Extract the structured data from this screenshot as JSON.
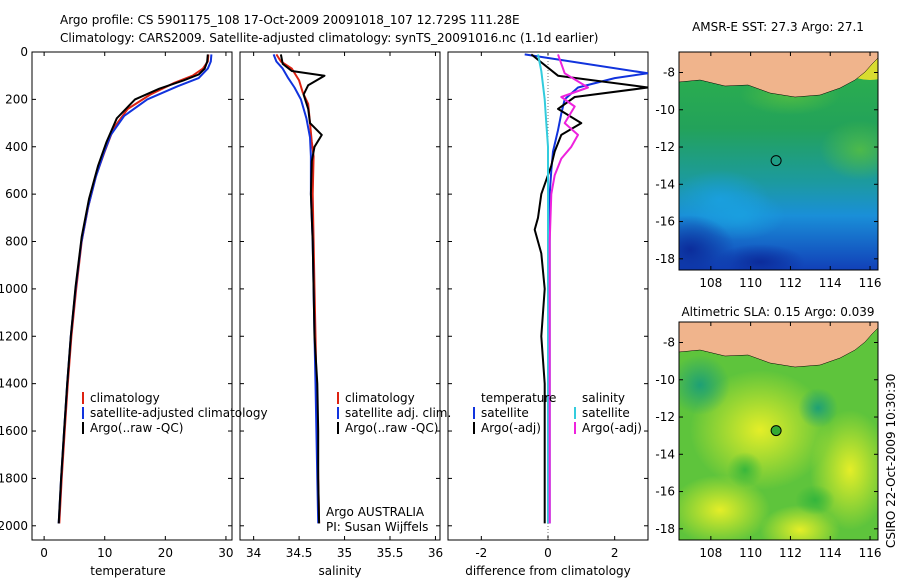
{
  "header": {
    "line1": "Argo profile: CS 5901175_108 17-Oct-2009 20091018_107 12.729S 111.28E",
    "line2": "Climatology: CARS2009. Satellite-adjusted climatology: synTS_20091016.nc (1.1d earlier)"
  },
  "credit": "CSIRO 22-Oct-2009 10:30:30",
  "colors": {
    "climatology": "#dd2211",
    "satellite": "#1133dd",
    "argo": "#000000",
    "salinity_satellite": "#33ccdd",
    "salinity_argo": "#ee22dd",
    "land": "#f0b48c",
    "marker_sst": "#000000",
    "marker_sla": "#33aa33"
  },
  "chart_data": [
    {
      "id": "temperature",
      "type": "line",
      "xlabel": "temperature",
      "ylabel": "",
      "xlim": [
        -2,
        31
      ],
      "ylim": [
        2060,
        0
      ],
      "xticks": [
        0,
        10,
        20,
        30
      ],
      "yticks": [
        0,
        200,
        400,
        600,
        800,
        1000,
        1200,
        1400,
        1600,
        1800,
        2000
      ],
      "legend": {
        "position": "lower-right",
        "entries": [
          "climatology",
          "satellite-adjusted climatology",
          "Argo(..raw -QC)"
        ]
      },
      "series": [
        {
          "name": "climatology",
          "color": "#dd2211",
          "points": [
            [
              27.1,
              10
            ],
            [
              27.0,
              40
            ],
            [
              26.2,
              70
            ],
            [
              24.5,
              100
            ],
            [
              21.5,
              130
            ],
            [
              17.5,
              180
            ],
            [
              13.8,
              240
            ],
            [
              11.5,
              320
            ],
            [
              10.0,
              420
            ],
            [
              8.6,
              520
            ],
            [
              7.3,
              650
            ],
            [
              6.2,
              800
            ],
            [
              5.3,
              1000
            ],
            [
              4.5,
              1200
            ],
            [
              3.9,
              1400
            ],
            [
              3.4,
              1600
            ],
            [
              2.9,
              1800
            ],
            [
              2.5,
              1990
            ]
          ]
        },
        {
          "name": "satellite-adjusted climatology",
          "color": "#1133dd",
          "points": [
            [
              27.6,
              10
            ],
            [
              27.5,
              40
            ],
            [
              27.0,
              70
            ],
            [
              25.5,
              110
            ],
            [
              22.0,
              145
            ],
            [
              17.0,
              200
            ],
            [
              13.2,
              270
            ],
            [
              11.0,
              350
            ],
            [
              9.8,
              430
            ],
            [
              8.5,
              530
            ],
            [
              7.2,
              660
            ],
            [
              6.1,
              810
            ],
            [
              5.2,
              1000
            ],
            [
              4.4,
              1200
            ],
            [
              3.8,
              1400
            ],
            [
              3.3,
              1600
            ],
            [
              2.8,
              1800
            ],
            [
              2.4,
              1990
            ]
          ]
        },
        {
          "name": "Argo(..raw -QC)",
          "color": "#000000",
          "points": [
            [
              27.0,
              10
            ],
            [
              26.9,
              40
            ],
            [
              26.5,
              70
            ],
            [
              25.5,
              95
            ],
            [
              23.0,
              120
            ],
            [
              19.0,
              155
            ],
            [
              15.0,
              200
            ],
            [
              12.0,
              280
            ],
            [
              10.3,
              380
            ],
            [
              8.9,
              480
            ],
            [
              7.4,
              620
            ],
            [
              6.2,
              780
            ],
            [
              5.2,
              990
            ],
            [
              4.4,
              1200
            ],
            [
              3.8,
              1400
            ],
            [
              3.3,
              1600
            ],
            [
              2.8,
              1800
            ],
            [
              2.4,
              1990
            ]
          ]
        }
      ]
    },
    {
      "id": "salinity",
      "type": "line",
      "xlabel": "salinity",
      "ylabel": "",
      "xlim": [
        33.85,
        36.05
      ],
      "ylim": [
        2060,
        0
      ],
      "xticks": [
        34,
        34.5,
        35,
        35.5,
        36
      ],
      "yticks": [
        0,
        200,
        400,
        600,
        800,
        1000,
        1200,
        1400,
        1600,
        1800,
        2000
      ],
      "legend": {
        "position": "lower-right",
        "entries": [
          "climatology",
          "satellite adj. clim.",
          "Argo(..raw -QC)"
        ]
      },
      "annotations": [
        "Argo AUSTRALIA",
        "PI: Susan Wijffels"
      ],
      "series": [
        {
          "name": "climatology",
          "color": "#dd2211",
          "points": [
            [
              34.25,
              10
            ],
            [
              34.3,
              40
            ],
            [
              34.42,
              70
            ],
            [
              34.5,
              120
            ],
            [
              34.54,
              170
            ],
            [
              34.6,
              220
            ],
            [
              34.62,
              300
            ],
            [
              34.64,
              380
            ],
            [
              34.66,
              440
            ],
            [
              34.65,
              600
            ],
            [
              34.66,
              800
            ],
            [
              34.67,
              1000
            ],
            [
              34.68,
              1200
            ],
            [
              34.69,
              1400
            ],
            [
              34.7,
              1600
            ],
            [
              34.71,
              1800
            ],
            [
              34.72,
              1990
            ]
          ]
        },
        {
          "name": "satellite adj. clim.",
          "color": "#1133dd",
          "points": [
            [
              34.22,
              10
            ],
            [
              34.25,
              40
            ],
            [
              34.32,
              70
            ],
            [
              34.38,
              110
            ],
            [
              34.45,
              150
            ],
            [
              34.52,
              200
            ],
            [
              34.58,
              280
            ],
            [
              34.62,
              360
            ],
            [
              34.63,
              440
            ],
            [
              34.63,
              600
            ],
            [
              34.65,
              800
            ],
            [
              34.66,
              1000
            ],
            [
              34.67,
              1200
            ],
            [
              34.68,
              1400
            ],
            [
              34.69,
              1600
            ],
            [
              34.7,
              1800
            ],
            [
              34.71,
              1990
            ]
          ]
        },
        {
          "name": "Argo(..raw -QC)",
          "color": "#000000",
          "points": [
            [
              34.3,
              10
            ],
            [
              34.32,
              50
            ],
            [
              34.42,
              80
            ],
            [
              34.78,
              100
            ],
            [
              34.6,
              140
            ],
            [
              34.55,
              180
            ],
            [
              34.6,
              240
            ],
            [
              34.62,
              300
            ],
            [
              34.75,
              350
            ],
            [
              34.67,
              400
            ],
            [
              34.64,
              460
            ],
            [
              34.63,
              600
            ],
            [
              34.65,
              800
            ],
            [
              34.66,
              1000
            ],
            [
              34.67,
              1200
            ],
            [
              34.7,
              1400
            ],
            [
              34.71,
              1600
            ],
            [
              34.71,
              1800
            ],
            [
              34.72,
              1990
            ]
          ]
        }
      ]
    },
    {
      "id": "difference",
      "type": "line",
      "xlabel": "difference from climatology",
      "ylabel": "",
      "xlim": [
        -3,
        3
      ],
      "ylim": [
        2060,
        0
      ],
      "xticks": [
        -2,
        0,
        2
      ],
      "yticks": [
        0,
        200,
        400,
        600,
        800,
        1000,
        1200,
        1400,
        1600,
        1800,
        2000
      ],
      "legend": {
        "position": "lower-center",
        "groups": [
          {
            "title": "temperature",
            "entries": [
              "satellite",
              "Argo(-adj)"
            ]
          },
          {
            "title": "salinity",
            "entries": [
              "satellite",
              "Argo(-adj)"
            ]
          }
        ]
      },
      "series": [
        {
          "name": "temperature satellite",
          "color": "#1133dd",
          "points": [
            [
              -0.7,
              10
            ],
            [
              3.0,
              90
            ],
            [
              2.0,
              110
            ],
            [
              0.9,
              150
            ],
            [
              0.5,
              200
            ],
            [
              0.4,
              260
            ],
            [
              0.3,
              330
            ],
            [
              0.15,
              420
            ],
            [
              0.1,
              500
            ],
            [
              0.05,
              600
            ],
            [
              0.05,
              800
            ],
            [
              0.05,
              1000
            ],
            [
              0.05,
              1200
            ],
            [
              0.05,
              1400
            ],
            [
              0.05,
              1600
            ],
            [
              0.05,
              1800
            ],
            [
              0.05,
              1990
            ]
          ]
        },
        {
          "name": "temperature Argo(-adj)",
          "color": "#000000",
          "points": [
            [
              -0.5,
              10
            ],
            [
              0.3,
              100
            ],
            [
              3.0,
              150
            ],
            [
              0.8,
              190
            ],
            [
              0.3,
              240
            ],
            [
              1.0,
              300
            ],
            [
              0.4,
              350
            ],
            [
              0.2,
              420
            ],
            [
              0.1,
              480
            ],
            [
              -0.2,
              600
            ],
            [
              -0.3,
              700
            ],
            [
              -0.4,
              750
            ],
            [
              -0.2,
              850
            ],
            [
              -0.1,
              1000
            ],
            [
              -0.2,
              1200
            ],
            [
              -0.1,
              1400
            ],
            [
              -0.1,
              1600
            ],
            [
              -0.1,
              1800
            ],
            [
              -0.1,
              1990
            ]
          ]
        },
        {
          "name": "salinity satellite",
          "color": "#33ccdd",
          "points": [
            [
              -0.3,
              10
            ],
            [
              -0.2,
              80
            ],
            [
              -0.1,
              200
            ],
            [
              -0.05,
              300
            ],
            [
              0.0,
              400
            ],
            [
              0.0,
              600
            ],
            [
              0.0,
              800
            ],
            [
              0.0,
              1000
            ],
            [
              0.0,
              1200
            ],
            [
              0.0,
              1400
            ],
            [
              0.0,
              1600
            ],
            [
              0.0,
              1800
            ],
            [
              0.0,
              1990
            ]
          ]
        },
        {
          "name": "salinity Argo(-adj)",
          "color": "#ee22dd",
          "points": [
            [
              0.3,
              10
            ],
            [
              0.5,
              90
            ],
            [
              1.2,
              150
            ],
            [
              0.4,
              190
            ],
            [
              0.8,
              230
            ],
            [
              0.5,
              300
            ],
            [
              0.9,
              350
            ],
            [
              0.7,
              400
            ],
            [
              0.4,
              450
            ],
            [
              0.2,
              520
            ],
            [
              0.1,
              600
            ],
            [
              0.05,
              800
            ],
            [
              0.05,
              1000
            ],
            [
              0.05,
              1200
            ],
            [
              0.05,
              1400
            ],
            [
              0.05,
              1600
            ],
            [
              0.05,
              1800
            ],
            [
              0.05,
              1990
            ]
          ]
        }
      ]
    },
    {
      "id": "sst_map",
      "type": "heatmap",
      "title": "AMSR-E SST: 27.3 Argo: 27.1",
      "xlim": [
        106.4,
        116.4
      ],
      "ylim": [
        -18.6,
        -6.9
      ],
      "xticks": [
        108,
        110,
        112,
        114,
        116
      ],
      "yticks": [
        -8,
        -10,
        -12,
        -14,
        -16,
        -18
      ],
      "marker": {
        "lon": 111.28,
        "lat": -12.729
      }
    },
    {
      "id": "sla_map",
      "type": "heatmap",
      "title": "Altimetric SLA: 0.15 Argo: 0.039",
      "xlim": [
        106.4,
        116.4
      ],
      "ylim": [
        -18.6,
        -6.9
      ],
      "xticks": [
        108,
        110,
        112,
        114,
        116
      ],
      "yticks": [
        -8,
        -10,
        -12,
        -14,
        -16,
        -18
      ],
      "marker": {
        "lon": 111.28,
        "lat": -12.729
      }
    }
  ]
}
